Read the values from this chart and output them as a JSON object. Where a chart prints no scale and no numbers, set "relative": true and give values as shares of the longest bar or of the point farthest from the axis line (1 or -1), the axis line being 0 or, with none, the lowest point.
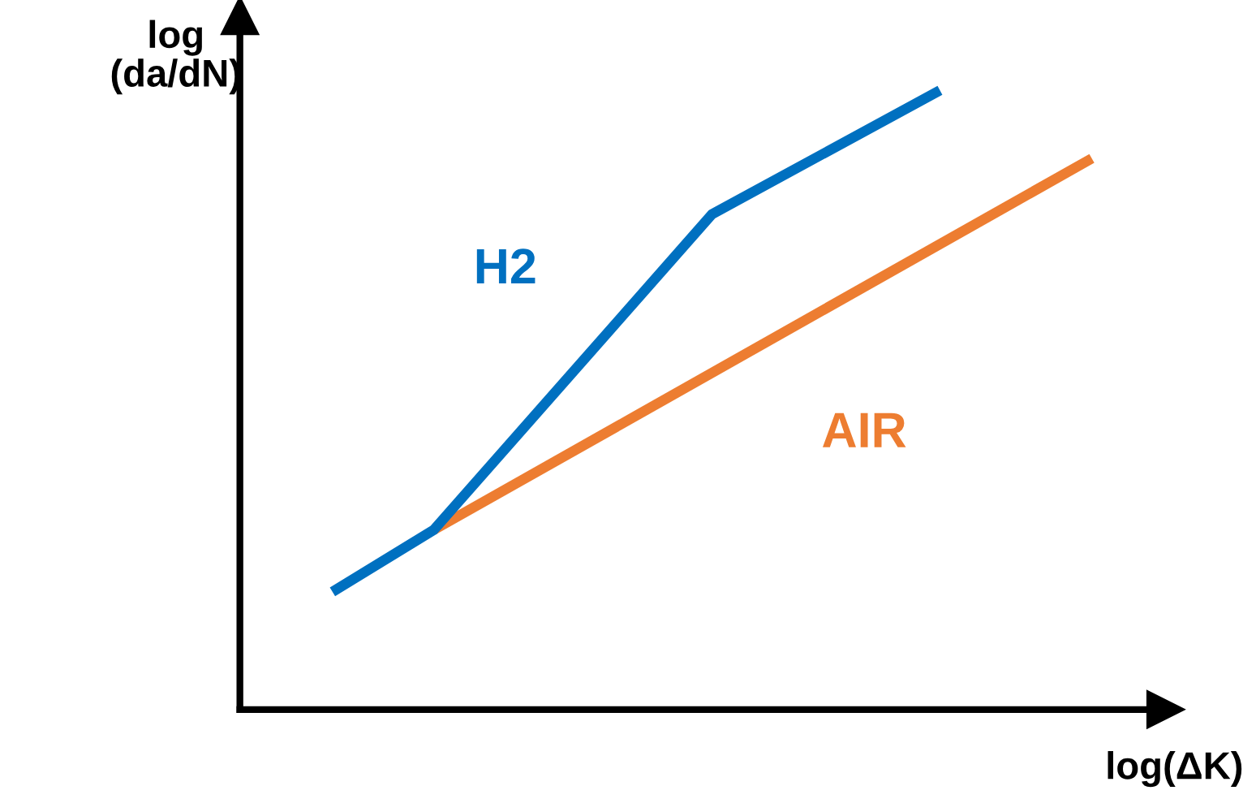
{
  "chart_data": {
    "type": "line",
    "relative": true,
    "xlabel": "log(ΔK)",
    "ylabel": "log\n(da/dN)",
    "legend": false,
    "marker": "none",
    "line_style": "solid",
    "categories": [
      null,
      null,
      null,
      null,
      null,
      null,
      null,
      null,
      null,
      null,
      null,
      null,
      null,
      null,
      null,
      null,
      null,
      null,
      null,
      null,
      null,
      null,
      null,
      null,
      null,
      null,
      null,
      null,
      null,
      null,
      null
    ],
    "series": [
      {
        "name": "H2",
        "color": "#0070c0",
        "values": [
          0.19,
          null,
          null,
          null,
          0.29,
          null,
          null,
          null,
          null,
          null,
          null,
          null,
          null,
          null,
          null,
          0.8,
          null,
          null,
          null,
          null,
          null,
          null,
          null,
          null,
          1.0,
          null,
          null,
          null,
          null,
          null,
          null
        ]
      },
      {
        "name": "AIR",
        "color": "#ed7d31",
        "values": [
          null,
          null,
          null,
          null,
          0.29,
          null,
          null,
          null,
          null,
          null,
          null,
          null,
          null,
          null,
          null,
          null,
          null,
          null,
          null,
          null,
          null,
          null,
          null,
          null,
          null,
          null,
          null,
          null,
          null,
          null,
          0.89
        ]
      }
    ]
  }
}
